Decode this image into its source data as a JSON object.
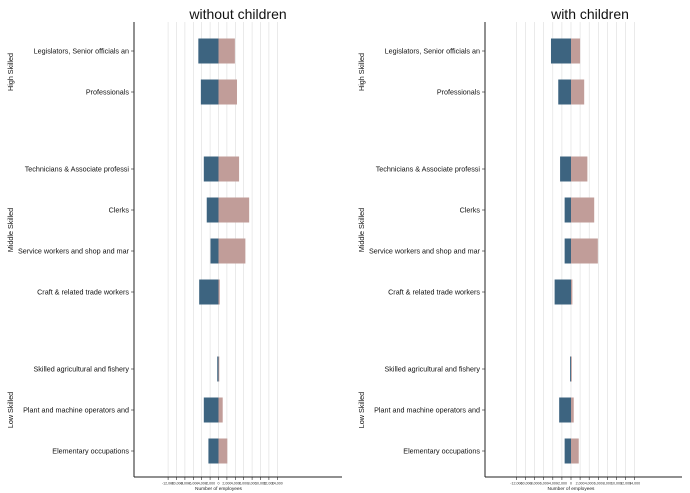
{
  "chart_data": [
    {
      "type": "bar",
      "orientation": "horizontal",
      "stacked": "diverging",
      "title": "without children",
      "xlabel": "Number of employees",
      "xlim": [
        -14000,
        14000
      ],
      "xticks": [
        -12000,
        -10000,
        -8000,
        -6000,
        -4000,
        -2000,
        0,
        2000,
        4000,
        6000,
        8000,
        10000,
        12000,
        14000
      ],
      "xtick_labels": [
        "-12,000",
        "-10,000",
        "-8,000",
        "-6,000",
        "-4,000",
        "-2,000",
        "0",
        "2,000",
        "4,000",
        "6,000",
        "8,000",
        "10,000",
        "12,000",
        "14,000"
      ],
      "grid": true,
      "groups": [
        {
          "name": "High Skilled",
          "categories": [
            "Legislators, Senior officials an",
            "Professionals"
          ]
        },
        {
          "name": "Middle Skilled",
          "categories": [
            "Technicians & Associate professi",
            "Clerks",
            "Service workers and shop and mar",
            "Craft & related trade workers"
          ]
        },
        {
          "name": "Low Skilled",
          "categories": [
            "Skilled agricultural and fishery",
            "Plant and machine operators and",
            "Elementary occupations"
          ]
        }
      ],
      "series": [
        {
          "color": "#3d6480",
          "values": [
            -4800,
            -4200,
            -3500,
            -2800,
            -1900,
            -4600,
            -300,
            -3500,
            -2400
          ]
        },
        {
          "color": "#c19d99",
          "values": [
            3900,
            4400,
            4900,
            7300,
            6400,
            300,
            100,
            1000,
            2100
          ]
        }
      ]
    },
    {
      "type": "bar",
      "orientation": "horizontal",
      "stacked": "diverging",
      "title": "with children",
      "xlabel": "Number of employees",
      "xlim": [
        -14000,
        14000
      ],
      "xticks": [
        -12000,
        -10000,
        -8000,
        -6000,
        -4000,
        -2000,
        0,
        2000,
        4000,
        6000,
        8000,
        10000,
        12000,
        14000
      ],
      "xtick_labels": [
        "-12,000",
        "-10,000",
        "-8,000",
        "-6,000",
        "-4,000",
        "-2,000",
        "0",
        "2,000",
        "4,000",
        "6,000",
        "8,000",
        "10,000",
        "12,000",
        "14,000"
      ],
      "grid": true,
      "groups": [
        {
          "name": "High Skilled",
          "categories": [
            "Legislators, Senior officials an",
            "Professionals"
          ]
        },
        {
          "name": "Middle Skilled",
          "categories": [
            "Technicians & Associate professi",
            "Clerks",
            "Service workers and shop and mar",
            "Craft & related trade workers"
          ]
        },
        {
          "name": "Low Skilled",
          "categories": [
            "Skilled agricultural and fishery",
            "Plant and machine operators and",
            "Elementary occupations"
          ]
        }
      ],
      "series": [
        {
          "color": "#3d6480",
          "values": [
            -4400,
            -2800,
            -2400,
            -1400,
            -1400,
            -3600,
            -200,
            -2600,
            -1400
          ]
        },
        {
          "color": "#c19d99",
          "values": [
            2000,
            2900,
            3600,
            5100,
            5900,
            300,
            100,
            600,
            1700
          ]
        }
      ]
    }
  ]
}
